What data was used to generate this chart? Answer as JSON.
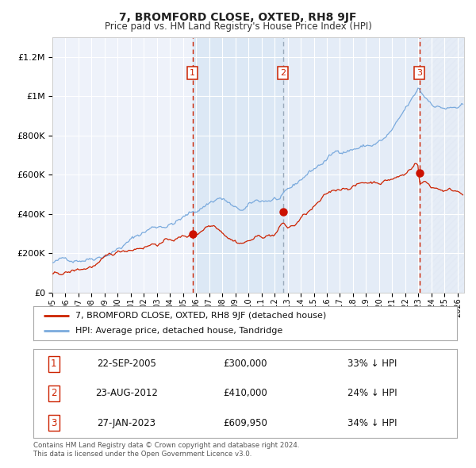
{
  "title": "7, BROMFORD CLOSE, OXTED, RH8 9JF",
  "subtitle": "Price paid vs. HM Land Registry's House Price Index (HPI)",
  "background_color": "#ffffff",
  "plot_bg_color": "#eef2fa",
  "grid_color": "#ffffff",
  "hpi_color": "#7aaadd",
  "price_color": "#cc2200",
  "sale_marker_color": "#cc1100",
  "vline_color_red": "#cc2200",
  "shade_color": "#dce8f5",
  "hatch_region_color": "#e0e8f4",
  "ylim": [
    0,
    1300000
  ],
  "xlim_start": 1995.0,
  "xlim_end": 2026.5,
  "yticks": [
    0,
    200000,
    400000,
    600000,
    800000,
    1000000,
    1200000
  ],
  "xticks": [
    1995,
    1996,
    1997,
    1998,
    1999,
    2000,
    2001,
    2002,
    2003,
    2004,
    2005,
    2006,
    2007,
    2008,
    2009,
    2010,
    2011,
    2012,
    2013,
    2014,
    2015,
    2016,
    2017,
    2018,
    2019,
    2020,
    2021,
    2022,
    2023,
    2024,
    2025,
    2026
  ],
  "sales": [
    {
      "num": 1,
      "date": "22-SEP-2005",
      "date_val": 2005.73,
      "price": 300000,
      "hpi_pct": "33%",
      "label": "1"
    },
    {
      "num": 2,
      "date": "23-AUG-2012",
      "date_val": 2012.65,
      "price": 410000,
      "hpi_pct": "24%",
      "label": "2"
    },
    {
      "num": 3,
      "date": "27-JAN-2023",
      "date_val": 2023.08,
      "price": 609950,
      "hpi_pct": "34%",
      "label": "3"
    }
  ],
  "legend_line1": "7, BROMFORD CLOSE, OXTED, RH8 9JF (detached house)",
  "legend_line2": "HPI: Average price, detached house, Tandridge",
  "footnote1": "Contains HM Land Registry data © Crown copyright and database right 2024.",
  "footnote2": "This data is licensed under the Open Government Licence v3.0."
}
